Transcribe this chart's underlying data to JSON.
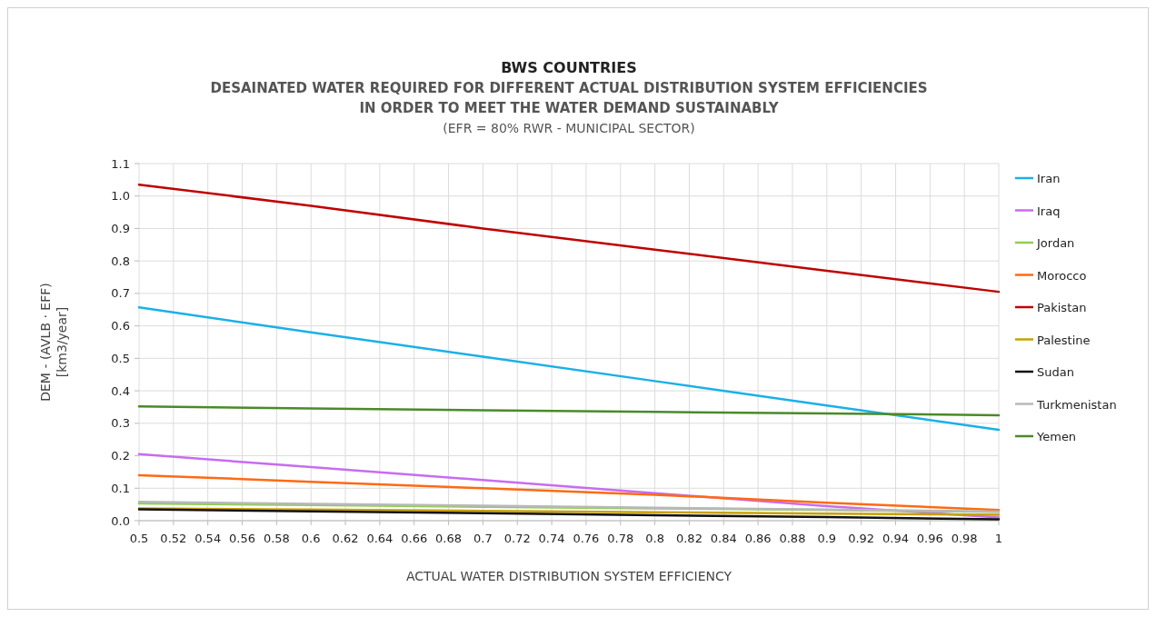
{
  "chart_data": {
    "type": "line",
    "title": "BWS COUNTRIES",
    "subtitle": "DESAINATED WATER REQUIRED FOR DIFFERENT ACTUAL DISTRIBUTION SYSTEM EFFICIENCIES\nIN ORDER TO MEET THE WATER DEMAND SUSTAINABLY\n(EFR = 80% RWR - MUNICIPAL SECTOR)",
    "xlabel": "ACTUAL WATER DISTRIBUTION SYSTEM EFFICIENCY",
    "ylabel": "DEM - (AVLB · EFF)\n[km3/year]",
    "x": [
      0.5,
      0.6,
      0.7,
      0.8,
      0.9,
      1
    ],
    "series": [
      {
        "name": "Iran",
        "color": "#1ab0e8",
        "values": [
          0.657,
          0.58,
          0.505,
          0.43,
          0.355,
          0.28
        ]
      },
      {
        "name": "Iraq",
        "color": "#c86cf0",
        "values": [
          0.205,
          0.165,
          0.125,
          0.085,
          0.045,
          0.01
        ]
      },
      {
        "name": "Jordan",
        "color": "#8fcf50",
        "values": [
          0.053,
          0.048,
          0.043,
          0.038,
          0.033,
          0.027
        ]
      },
      {
        "name": "Morocco",
        "color": "#ff6a13",
        "values": [
          0.14,
          0.12,
          0.1,
          0.08,
          0.055,
          0.033
        ]
      },
      {
        "name": "Pakistan",
        "color": "#c00000",
        "values": [
          1.035,
          0.97,
          0.9,
          0.835,
          0.77,
          0.705
        ]
      },
      {
        "name": "Palestine",
        "color": "#c8a000",
        "values": [
          0.038,
          0.034,
          0.03,
          0.026,
          0.022,
          0.018
        ]
      },
      {
        "name": "Sudan",
        "color": "#111111",
        "values": [
          0.035,
          0.029,
          0.023,
          0.017,
          0.011,
          0.004
        ]
      },
      {
        "name": "Turkmenistan",
        "color": "#b8b8b8",
        "values": [
          0.058,
          0.052,
          0.046,
          0.04,
          0.034,
          0.028
        ]
      },
      {
        "name": "Yemen",
        "color": "#4a8a2a",
        "values": [
          0.352,
          0.346,
          0.34,
          0.335,
          0.33,
          0.325
        ]
      }
    ],
    "xlim": [
      0.5,
      1
    ],
    "xticks": [
      0.5,
      0.52,
      0.54,
      0.56,
      0.58,
      0.6,
      0.62,
      0.64,
      0.66,
      0.68,
      0.7,
      0.72,
      0.74,
      0.76,
      0.78,
      0.8,
      0.82,
      0.84,
      0.86,
      0.88,
      0.9,
      0.92,
      0.94,
      0.96,
      0.98,
      1
    ],
    "ylim": [
      0,
      1.1
    ],
    "yticks": [
      {
        "value": 0,
        "label": "0.0"
      },
      0.1,
      0.2,
      0.3,
      0.4,
      0.5,
      0.6,
      0.7,
      0.8,
      0.9,
      {
        "value": 1,
        "label": "1.0"
      },
      1.1
    ],
    "grid": true,
    "legend": "right",
    "marker": "none",
    "line_style": "solid"
  }
}
